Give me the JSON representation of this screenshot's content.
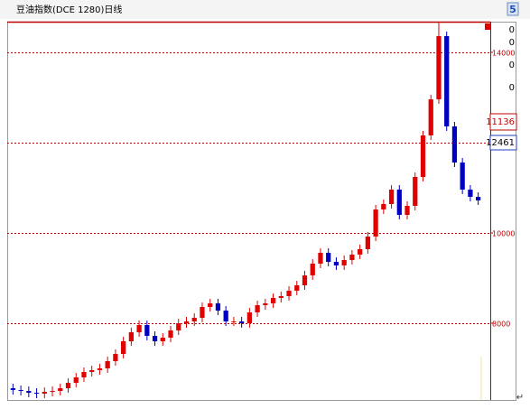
{
  "chart_data": {
    "type": "candlestick",
    "title": "豆油指数(DCE 1280)日线",
    "title_icon": "5",
    "open": [
      6560,
      6520,
      6500,
      6460,
      6440,
      6480,
      6500,
      6560,
      6680,
      6800,
      6920,
      6960,
      7000,
      7160,
      7320,
      7600,
      7800,
      7960,
      7720,
      7600,
      7680,
      7840,
      8000,
      8040,
      8120,
      8360,
      8440,
      8280,
      8040,
      8040,
      8000,
      8240,
      8400,
      8440,
      8560,
      8600,
      8720,
      8840,
      9060,
      9320,
      9560,
      9360,
      9280,
      9400,
      9520,
      9640,
      9920,
      10520,
      10640,
      10960,
      10400,
      10600,
      11240,
      12160,
      12960,
      14360,
      12360,
      11560,
      10960,
      10800
    ],
    "high": [
      6660,
      6620,
      6600,
      6560,
      6580,
      6600,
      6660,
      6780,
      6900,
      7020,
      7060,
      7100,
      7260,
      7420,
      7700,
      7900,
      8060,
      8060,
      7820,
      7780,
      7940,
      8100,
      8140,
      8220,
      8460,
      8540,
      8540,
      8380,
      8140,
      8140,
      8340,
      8500,
      8540,
      8660,
      8700,
      8820,
      8940,
      9160,
      9420,
      9660,
      9660,
      9460,
      9500,
      9620,
      9740,
      10020,
      10620,
      10740,
      11060,
      11060,
      10700,
      11340,
      12260,
      13060,
      14660,
      14460,
      12460,
      11660,
      11060,
      10900
    ],
    "low": [
      6420,
      6400,
      6360,
      6340,
      6340,
      6380,
      6400,
      6460,
      6580,
      6700,
      6820,
      6860,
      6900,
      7060,
      7220,
      7500,
      7700,
      7620,
      7500,
      7500,
      7580,
      7740,
      7900,
      7940,
      8020,
      8260,
      8180,
      7940,
      7940,
      7900,
      7900,
      8140,
      8300,
      8340,
      8460,
      8500,
      8620,
      8740,
      8960,
      9220,
      9260,
      9180,
      9180,
      9300,
      9420,
      9540,
      9820,
      10420,
      10540,
      10300,
      10300,
      10500,
      11140,
      12060,
      12860,
      12260,
      11460,
      10860,
      10700,
      10620
    ],
    "close": [
      6520,
      6500,
      6460,
      6440,
      6480,
      6500,
      6560,
      6680,
      6800,
      6920,
      6960,
      7000,
      7160,
      7320,
      7600,
      7800,
      7960,
      7720,
      7600,
      7680,
      7840,
      8000,
      8040,
      8120,
      8360,
      8440,
      8280,
      8040,
      8040,
      8000,
      8240,
      8400,
      8440,
      8560,
      8600,
      8720,
      8840,
      9060,
      9320,
      9560,
      9360,
      9280,
      9400,
      9520,
      9640,
      9920,
      10520,
      10640,
      10960,
      10400,
      10600,
      11240,
      12160,
      12960,
      14360,
      12360,
      11560,
      10960,
      10800,
      10720
    ],
    "up_color": "#e00000",
    "down_color": "#0000c0",
    "ylim": [
      6300,
      14660
    ],
    "yticks": [
      8000,
      10000,
      14000
    ],
    "grid_values": [
      8000,
      10000,
      12000,
      14000
    ],
    "grid_color": "#c00000",
    "side_values": [
      "0",
      "0",
      "0",
      "0"
    ],
    "side_price": "11136",
    "last_price": "12461",
    "return_mark": "↵"
  }
}
